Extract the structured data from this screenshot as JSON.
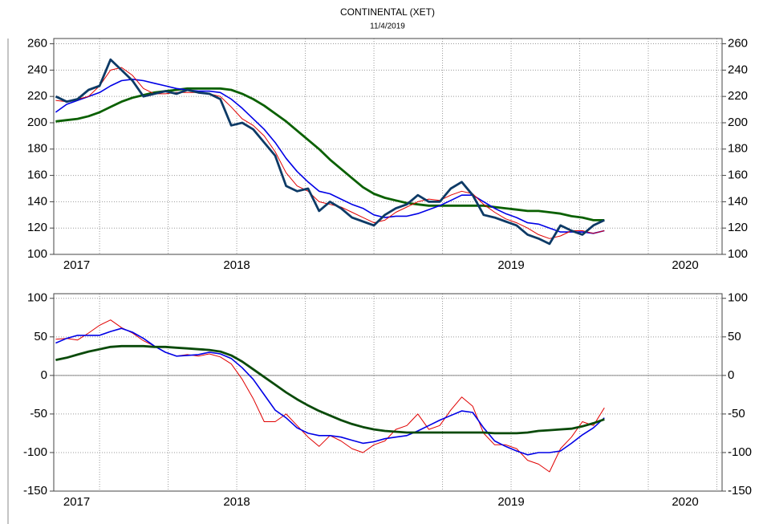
{
  "chart_data": [
    {
      "type": "line",
      "title": "CONTINENTAL (XET)",
      "subtitle": "11/4/2019",
      "x": [
        2017.84,
        2017.88,
        2017.92,
        2017.96,
        2018.0,
        2018.04,
        2018.08,
        2018.12,
        2018.16,
        2018.2,
        2018.24,
        2018.28,
        2018.32,
        2018.36,
        2018.4,
        2018.44,
        2018.48,
        2018.52,
        2018.56,
        2018.6,
        2018.64,
        2018.68,
        2018.72,
        2018.76,
        2018.8,
        2018.84,
        2018.88,
        2018.92,
        2018.96,
        2019.0,
        2019.04,
        2019.08,
        2019.12,
        2019.16,
        2019.2,
        2019.24,
        2019.28,
        2019.32,
        2019.36,
        2019.4,
        2019.44,
        2019.48,
        2019.52,
        2019.56,
        2019.6,
        2019.64,
        2019.68,
        2019.72,
        2019.76,
        2019.8,
        2019.84
      ],
      "xlim": [
        2017.833,
        2020.269
      ],
      "xticks": [
        2018,
        2018.25,
        2018.5,
        2018.75,
        2019,
        2019.25,
        2019.5,
        2019.75,
        2020,
        2020.25
      ],
      "year_labels": [
        {
          "value": 2017,
          "label": "2017"
        },
        {
          "value": 2018,
          "label": "2018"
        },
        {
          "value": 2019,
          "label": "2019"
        },
        {
          "value": 2020,
          "label": "2020"
        }
      ],
      "ylim": [
        100,
        264
      ],
      "yticks": [
        100,
        120,
        140,
        160,
        180,
        200,
        220,
        240,
        260
      ],
      "grid": true,
      "series": [
        {
          "color": "#0a6000",
          "line_width": 2.8,
          "values": [
            201,
            202,
            203,
            205,
            208,
            212,
            216,
            219,
            221,
            223,
            224,
            225,
            226,
            226,
            226,
            226,
            225,
            222,
            218,
            213,
            207,
            201,
            194,
            187,
            180,
            172,
            165,
            158,
            151,
            146,
            143,
            141,
            139,
            138,
            137,
            137,
            137,
            137,
            137,
            137,
            136,
            135,
            134,
            133,
            133,
            132,
            131,
            129,
            128,
            126,
            126
          ]
        },
        {
          "color": "#0000e6",
          "line_width": 1.6,
          "values": [
            208,
            214,
            217,
            220,
            223,
            228,
            232,
            233,
            232,
            230,
            228,
            226,
            225,
            224,
            224,
            223,
            218,
            211,
            203,
            195,
            185,
            173,
            163,
            155,
            148,
            146,
            142,
            138,
            135,
            130,
            128,
            129,
            129,
            131,
            134,
            137,
            141,
            145,
            145,
            140,
            135,
            131,
            128,
            124,
            123,
            120,
            117,
            117,
            117,
            116,
            118
          ]
        },
        {
          "color": "#e00000",
          "line_width": 1,
          "values": [
            217,
            216,
            218,
            220,
            228,
            240,
            242,
            236,
            226,
            222,
            222,
            223,
            223,
            223,
            222,
            220,
            212,
            203,
            198,
            190,
            178,
            162,
            152,
            148,
            140,
            138,
            136,
            132,
            128,
            124,
            126,
            132,
            136,
            140,
            142,
            141,
            145,
            148,
            146,
            138,
            132,
            127,
            124,
            120,
            115,
            112,
            114,
            118,
            118,
            116,
            118
          ]
        },
        {
          "color": "#0d3a66",
          "line_width": 2.8,
          "values": [
            220,
            216,
            218,
            225,
            228,
            248,
            240,
            232,
            220,
            222,
            224,
            222,
            225,
            223,
            222,
            218,
            198,
            200,
            195,
            185,
            175,
            152,
            148,
            150,
            133,
            140,
            135,
            128,
            125,
            122,
            130,
            135,
            138,
            145,
            140,
            140,
            150,
            155,
            145,
            130,
            128,
            125,
            122,
            115,
            112,
            108,
            122,
            118,
            115,
            122,
            126
          ]
        }
      ]
    },
    {
      "type": "line",
      "x": [
        2017.84,
        2017.88,
        2017.92,
        2017.96,
        2018.0,
        2018.04,
        2018.08,
        2018.12,
        2018.16,
        2018.2,
        2018.24,
        2018.28,
        2018.32,
        2018.36,
        2018.4,
        2018.44,
        2018.48,
        2018.52,
        2018.56,
        2018.6,
        2018.64,
        2018.68,
        2018.72,
        2018.76,
        2018.8,
        2018.84,
        2018.88,
        2018.92,
        2018.96,
        2019.0,
        2019.04,
        2019.08,
        2019.12,
        2019.16,
        2019.2,
        2019.24,
        2019.28,
        2019.32,
        2019.36,
        2019.4,
        2019.44,
        2019.48,
        2019.52,
        2019.56,
        2019.6,
        2019.64,
        2019.68,
        2019.72,
        2019.76,
        2019.8,
        2019.84
      ],
      "xlim": [
        2017.833,
        2020.269
      ],
      "xticks": [
        2018,
        2018.25,
        2018.5,
        2018.75,
        2019,
        2019.25,
        2019.5,
        2019.75,
        2020,
        2020.25
      ],
      "year_labels": [
        {
          "value": 2017,
          "label": "2017"
        },
        {
          "value": 2018,
          "label": "2018"
        },
        {
          "value": 2019,
          "label": "2019"
        },
        {
          "value": 2020,
          "label": "2020"
        }
      ],
      "ylim": [
        -150,
        106
      ],
      "yticks": [
        -150,
        -100,
        -50,
        0,
        50,
        100
      ],
      "grid": true,
      "zero_line": true,
      "series": [
        {
          "color": "#e00000",
          "line_width": 1,
          "values": [
            47,
            48,
            46,
            55,
            65,
            72,
            62,
            55,
            45,
            38,
            30,
            25,
            27,
            25,
            28,
            24,
            15,
            -5,
            -30,
            -60,
            -60,
            -50,
            -65,
            -80,
            -92,
            -78,
            -85,
            -95,
            -100,
            -90,
            -85,
            -70,
            -65,
            -50,
            -70,
            -65,
            -45,
            -28,
            -40,
            -75,
            -90,
            -90,
            -95,
            -110,
            -115,
            -125,
            -95,
            -80,
            -60,
            -65,
            -42
          ]
        },
        {
          "color": "#0000e6",
          "line_width": 1.6,
          "values": [
            42,
            48,
            52,
            52,
            52,
            57,
            61,
            56,
            48,
            38,
            30,
            25,
            26,
            27,
            30,
            28,
            22,
            10,
            -5,
            -25,
            -45,
            -55,
            -68,
            -75,
            -78,
            -78,
            -80,
            -84,
            -88,
            -86,
            -82,
            -80,
            -78,
            -72,
            -65,
            -58,
            -52,
            -46,
            -48,
            -68,
            -85,
            -92,
            -98,
            -103,
            -100,
            -100,
            -98,
            -88,
            -77,
            -68,
            -55
          ]
        },
        {
          "color": "#0a4a0a",
          "line_width": 2.8,
          "values": [
            20,
            23,
            27,
            31,
            34,
            37,
            38,
            38,
            38,
            37,
            37,
            36,
            35,
            34,
            33,
            31,
            26,
            18,
            8,
            -2,
            -12,
            -22,
            -31,
            -39,
            -46,
            -52,
            -58,
            -63,
            -67,
            -70,
            -72,
            -73,
            -74,
            -74,
            -74,
            -74,
            -74,
            -74,
            -74,
            -74,
            -75,
            -75,
            -75,
            -74,
            -72,
            -71,
            -70,
            -69,
            -66,
            -62,
            -57
          ]
        }
      ]
    }
  ]
}
